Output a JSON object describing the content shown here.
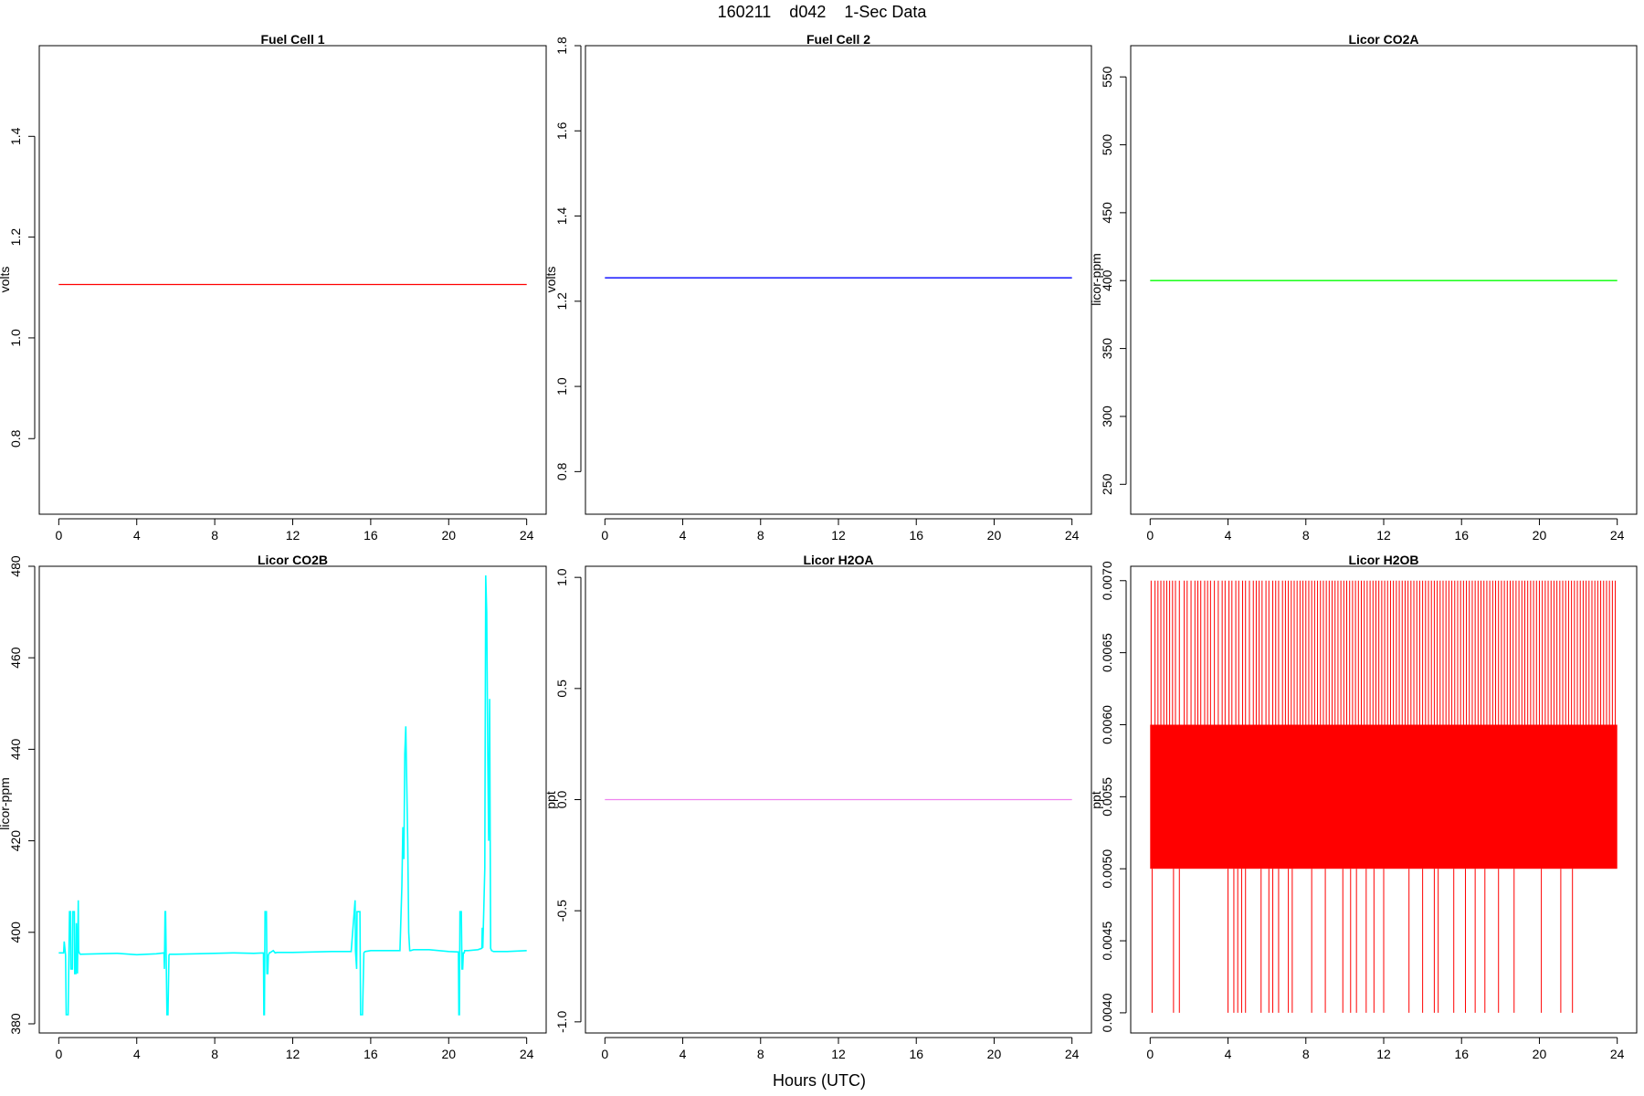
{
  "figure": {
    "title": "160211    d042    1-Sec Data",
    "xlabel": "Hours (UTC)"
  },
  "chart_data": [
    {
      "type": "line",
      "title": "Fuel Cell 1",
      "ylabel": "volts",
      "color": "#ff0000",
      "xlim": [
        -1,
        25
      ],
      "ylim": [
        0.65,
        1.58
      ],
      "xticks": [
        0,
        4,
        8,
        12,
        16,
        20,
        24
      ],
      "yticks": [
        0.8,
        1.0,
        1.2,
        1.4
      ],
      "ytick_labels": [
        "0.8",
        "1.0",
        "1.2",
        "1.4"
      ],
      "series": [
        {
          "x": [
            0,
            24
          ],
          "y": [
            1.106,
            1.106
          ]
        }
      ]
    },
    {
      "type": "line",
      "title": "Fuel Cell 2",
      "ylabel": "volts",
      "color": "#0000ff",
      "xlim": [
        -1,
        25
      ],
      "ylim": [
        0.7,
        1.8
      ],
      "xticks": [
        0,
        4,
        8,
        12,
        16,
        20,
        24
      ],
      "yticks": [
        0.8,
        1.0,
        1.2,
        1.4,
        1.6,
        1.8
      ],
      "ytick_labels": [
        "0.8",
        "1.0",
        "1.2",
        "1.4",
        "1.6",
        "1.8"
      ],
      "series": [
        {
          "x": [
            0,
            24
          ],
          "y": [
            1.255,
            1.255
          ]
        }
      ]
    },
    {
      "type": "line",
      "title": "Licor CO2A",
      "ylabel": "licor-ppm",
      "color": "#00ff00",
      "xlim": [
        -1,
        25
      ],
      "ylim": [
        228,
        573
      ],
      "xticks": [
        0,
        4,
        8,
        12,
        16,
        20,
        24
      ],
      "yticks": [
        250,
        300,
        350,
        400,
        450,
        500,
        550
      ],
      "ytick_labels": [
        "250",
        "300",
        "350",
        "400",
        "450",
        "500",
        "550"
      ],
      "series": [
        {
          "x": [
            0,
            24
          ],
          "y": [
            400,
            400
          ]
        }
      ]
    },
    {
      "type": "line",
      "title": "Licor CO2B",
      "ylabel": "licor-ppm",
      "color": "#00ffff",
      "xlim": [
        -1,
        25
      ],
      "ylim": [
        378,
        480
      ],
      "xticks": [
        0,
        4,
        8,
        12,
        16,
        20,
        24
      ],
      "yticks": [
        380,
        400,
        420,
        440,
        460,
        480
      ],
      "ytick_labels": [
        "380",
        "400",
        "420",
        "440",
        "460",
        "480"
      ],
      "series": [
        {
          "x": [
            0,
            0.25,
            0.28,
            0.35,
            0.38,
            0.45,
            0.48,
            0.55,
            0.6,
            0.62,
            0.7,
            0.72,
            0.8,
            0.82,
            0.88,
            0.9,
            0.96,
            1.0,
            1.02,
            1.05,
            1.1,
            2,
            3,
            4,
            5,
            5.4,
            5.42,
            5.45,
            5.48,
            5.55,
            5.58,
            5.6,
            5.65,
            5.68,
            5.72,
            6,
            7,
            8,
            9,
            10,
            10.5,
            10.52,
            10.55,
            10.58,
            10.65,
            10.68,
            10.72,
            10.75,
            10.8,
            10.82,
            11,
            11.1,
            11.2,
            12,
            13,
            14,
            15,
            15.2,
            15.22,
            15.28,
            15.3,
            15.45,
            15.48,
            15.55,
            15.58,
            15.65,
            15.68,
            15.72,
            16,
            17,
            17.5,
            17.6,
            17.65,
            17.7,
            17.75,
            17.8,
            17.85,
            17.9,
            17.95,
            18,
            18.05,
            18.2,
            19,
            20,
            20.5,
            20.52,
            20.55,
            20.58,
            20.65,
            20.68,
            20.72,
            20.75,
            20.8,
            20.82,
            21,
            21.5,
            21.7,
            21.72,
            21.75,
            21.8,
            21.85,
            21.9,
            21.95,
            22.0,
            22.05,
            22.1,
            22.15,
            22.2,
            22.3,
            23,
            24
          ],
          "y": [
            395.5,
            395.5,
            398,
            395,
            382,
            382,
            382,
            404.5,
            404.5,
            392,
            392,
            404.5,
            404.5,
            391,
            391,
            402,
            391,
            407,
            396,
            395.5,
            395.2,
            395.3,
            395.4,
            395.1,
            395.3,
            395.5,
            392,
            404.5,
            404.5,
            382,
            382,
            382,
            395,
            395.2,
            395.2,
            395.2,
            395.3,
            395.4,
            395.5,
            395.4,
            395.5,
            382,
            382,
            404.5,
            404.5,
            391,
            391,
            395,
            395.5,
            395.5,
            396,
            395.5,
            395.6,
            395.6,
            395.7,
            395.8,
            395.8,
            407,
            396,
            392,
            404.5,
            404.5,
            382,
            382,
            382,
            395.5,
            395.7,
            395.8,
            396,
            396,
            396,
            410,
            423,
            416,
            439,
            445,
            432,
            420,
            400,
            396,
            396,
            396.2,
            396.2,
            395.8,
            395.7,
            382,
            382,
            404.5,
            404.5,
            392,
            392,
            395.5,
            395.5,
            396,
            396,
            396.2,
            396.5,
            401,
            396.6,
            405,
            414,
            478,
            470,
            440,
            420,
            451,
            396.5,
            396,
            395.8,
            395.8,
            396
          ]
        }
      ]
    },
    {
      "type": "line",
      "title": "Licor H2OA",
      "ylabel": "ppt",
      "color": "#ee82ee",
      "xlim": [
        -1,
        25
      ],
      "ylim": [
        -1.05,
        1.05
      ],
      "xticks": [
        0,
        4,
        8,
        12,
        16,
        20,
        24
      ],
      "yticks": [
        -1.0,
        -0.5,
        0.0,
        0.5,
        1.0
      ],
      "ytick_labels": [
        "-1.0",
        "-0.5",
        "0.0",
        "0.5",
        "1.0"
      ],
      "series": [
        {
          "x": [
            0,
            24
          ],
          "y": [
            0,
            0
          ]
        }
      ]
    },
    {
      "type": "line",
      "title": "Licor H2OB",
      "ylabel": "ppt",
      "color": "#ff0000",
      "xlim": [
        -1,
        25
      ],
      "ylim": [
        0.00386,
        0.0071
      ],
      "xticks": [
        0,
        4,
        8,
        12,
        16,
        20,
        24
      ],
      "yticks": [
        0.004,
        0.0045,
        0.005,
        0.0055,
        0.006,
        0.0065,
        0.007
      ],
      "ytick_labels": [
        "0.0040",
        "0.0045",
        "0.0050",
        "0.0055",
        "0.0060",
        "0.0065",
        "0.0070"
      ],
      "series": [
        {
          "x": [
            0,
            24
          ],
          "y_band": [
            0.005,
            0.006
          ],
          "spikes_up_to": 0.007,
          "spikes_down_to": 0.004,
          "down_spike_x": [
            0.1,
            1.2,
            1.5,
            4.0,
            4.3,
            4.5,
            4.7,
            4.9,
            5.7,
            6.1,
            6.3,
            6.6,
            7.1,
            7.3,
            8.3,
            9.0,
            9.9,
            10.3,
            10.6,
            11.1,
            11.5,
            12.0,
            13.3,
            14.0,
            14.6,
            14.8,
            15.6,
            16.2,
            16.7,
            17.2,
            17.9,
            18.7,
            20.1,
            21.1,
            21.7
          ],
          "up_spike_x": [
            0.05,
            0.25,
            0.4,
            0.55,
            0.7,
            0.85,
            1.0,
            1.15,
            1.3,
            1.5,
            1.75,
            1.9,
            2.1,
            2.3,
            2.45,
            2.6,
            2.8,
            2.95,
            3.1,
            3.3,
            3.5,
            3.7,
            3.85,
            4.05,
            4.2,
            4.4,
            4.55,
            4.75,
            4.9,
            5.1,
            5.3,
            5.45,
            5.6,
            5.75,
            5.95,
            6.1,
            6.3,
            6.45,
            6.6,
            6.8,
            6.95,
            7.1,
            7.25,
            7.4,
            7.55,
            7.7,
            7.85,
            8.0,
            8.15,
            8.3,
            8.45,
            8.6,
            8.75,
            8.9,
            9.05,
            9.2,
            9.35,
            9.5,
            9.65,
            9.8,
            9.95,
            10.1,
            10.25,
            10.4,
            10.55,
            10.7,
            10.85,
            11.0,
            11.15,
            11.3,
            11.45,
            11.6,
            11.75,
            11.9,
            12.05,
            12.2,
            12.35,
            12.5,
            12.65,
            12.8,
            12.95,
            13.1,
            13.25,
            13.4,
            13.55,
            13.7,
            13.85,
            14.0,
            14.15,
            14.3,
            14.45,
            14.6,
            14.75,
            14.9,
            15.05,
            15.2,
            15.35,
            15.5,
            15.65,
            15.8,
            15.95,
            16.1,
            16.25,
            16.4,
            16.55,
            16.7,
            16.85,
            17.0,
            17.15,
            17.3,
            17.45,
            17.6,
            17.75,
            17.9,
            18.05,
            18.2,
            18.35,
            18.5,
            18.65,
            18.8,
            18.95,
            19.1,
            19.25,
            19.4,
            19.55,
            19.7,
            19.85,
            20.0,
            20.15,
            20.3,
            20.45,
            20.6,
            20.75,
            20.9,
            21.05,
            21.2,
            21.35,
            21.5,
            21.65,
            21.8,
            21.95,
            22.1,
            22.25,
            22.4,
            22.55,
            22.7,
            22.85,
            23.0,
            23.15,
            23.3,
            23.45,
            23.6,
            23.75,
            23.9
          ]
        }
      ]
    }
  ]
}
